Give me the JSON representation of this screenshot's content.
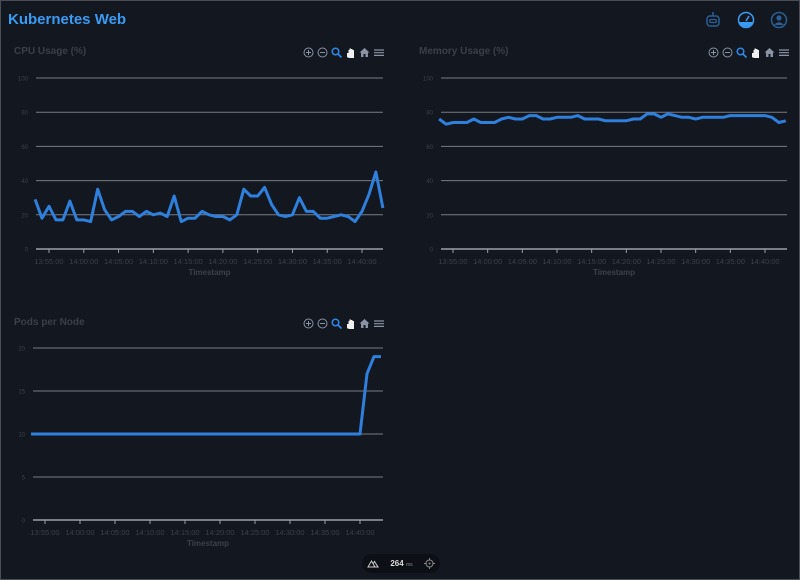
{
  "header": {
    "title": "Kubernetes Web",
    "icons": [
      "robot-icon",
      "dashboard-gauge-icon",
      "user-account-icon"
    ],
    "accent": "#3a9bf3"
  },
  "toolbar_icons": [
    "zoom-in-icon",
    "zoom-out-icon",
    "selection-zoom-icon",
    "pan-hand-icon",
    "reset-home-icon",
    "menu-icon"
  ],
  "bottom_bar": {
    "value": "264",
    "unit": "ms"
  },
  "chart_data": [
    {
      "type": "line",
      "title": "CPU Usage (%)",
      "xlabel": "Timestamp",
      "ylabel": "",
      "ylim": [
        0,
        100
      ],
      "yticks": [
        "0",
        "20",
        "40",
        "60",
        "80",
        "100"
      ],
      "xticks": [
        "13:55:00",
        "14:00:00",
        "14:05:00",
        "14:10:00",
        "14:15:00",
        "14:20:00",
        "14:25:00",
        "14:30:00",
        "14:35:00",
        "14:40:00"
      ],
      "x_start": "13:53:00",
      "x_step_minutes": 1,
      "line_color": "#2f7fdc",
      "values": [
        29,
        18,
        25,
        17,
        17,
        28,
        17,
        17,
        16,
        35,
        23,
        17,
        19,
        22,
        22,
        19,
        22,
        20,
        21,
        19,
        31,
        16,
        18,
        18,
        22,
        20,
        19,
        19,
        17,
        20,
        35,
        31,
        31,
        36,
        26,
        20,
        19,
        20,
        30,
        22,
        22,
        18,
        18,
        19,
        20,
        19,
        16,
        22,
        32,
        45,
        24
      ]
    },
    {
      "type": "line",
      "title": "Memory Usage (%)",
      "xlabel": "Timestamp",
      "ylabel": "",
      "ylim": [
        0,
        100
      ],
      "yticks": [
        "0",
        "20",
        "40",
        "60",
        "80",
        "100"
      ],
      "xticks": [
        "13:55:00",
        "14:00:00",
        "14:05:00",
        "14:10:00",
        "14:15:00",
        "14:20:00",
        "14:25:00",
        "14:30:00",
        "14:35:00",
        "14:40:00"
      ],
      "x_start": "13:53:00",
      "x_step_minutes": 1,
      "line_color": "#2f7fdc",
      "values": [
        76,
        73,
        74,
        74,
        74,
        76,
        74,
        74,
        74,
        76,
        77,
        76,
        76,
        78,
        78,
        76,
        76,
        77,
        77,
        77,
        78,
        76,
        76,
        76,
        75,
        75,
        75,
        75,
        76,
        76,
        79,
        79,
        77,
        79,
        78,
        77,
        77,
        76,
        77,
        77,
        77,
        77,
        78,
        78,
        78,
        78,
        78,
        78,
        77,
        74,
        75
      ]
    },
    {
      "type": "line",
      "title": "Pods per Node",
      "xlabel": "Timestamp",
      "ylabel": "",
      "ylim": [
        0,
        20
      ],
      "yticks": [
        "0",
        "5",
        "10",
        "15",
        "20"
      ],
      "xticks": [
        "13:55:00",
        "14:00:00",
        "14:05:00",
        "14:10:00",
        "14:15:00",
        "14:20:00",
        "14:25:00",
        "14:30:00",
        "14:35:00",
        "14:40:00"
      ],
      "x_start": "13:53:00",
      "x_step_minutes": 1,
      "line_color": "#2f7fdc",
      "values": [
        10,
        10,
        10,
        10,
        10,
        10,
        10,
        10,
        10,
        10,
        10,
        10,
        10,
        10,
        10,
        10,
        10,
        10,
        10,
        10,
        10,
        10,
        10,
        10,
        10,
        10,
        10,
        10,
        10,
        10,
        10,
        10,
        10,
        10,
        10,
        10,
        10,
        10,
        10,
        10,
        10,
        10,
        10,
        10,
        10,
        10,
        10,
        10,
        17,
        19,
        19
      ]
    }
  ]
}
